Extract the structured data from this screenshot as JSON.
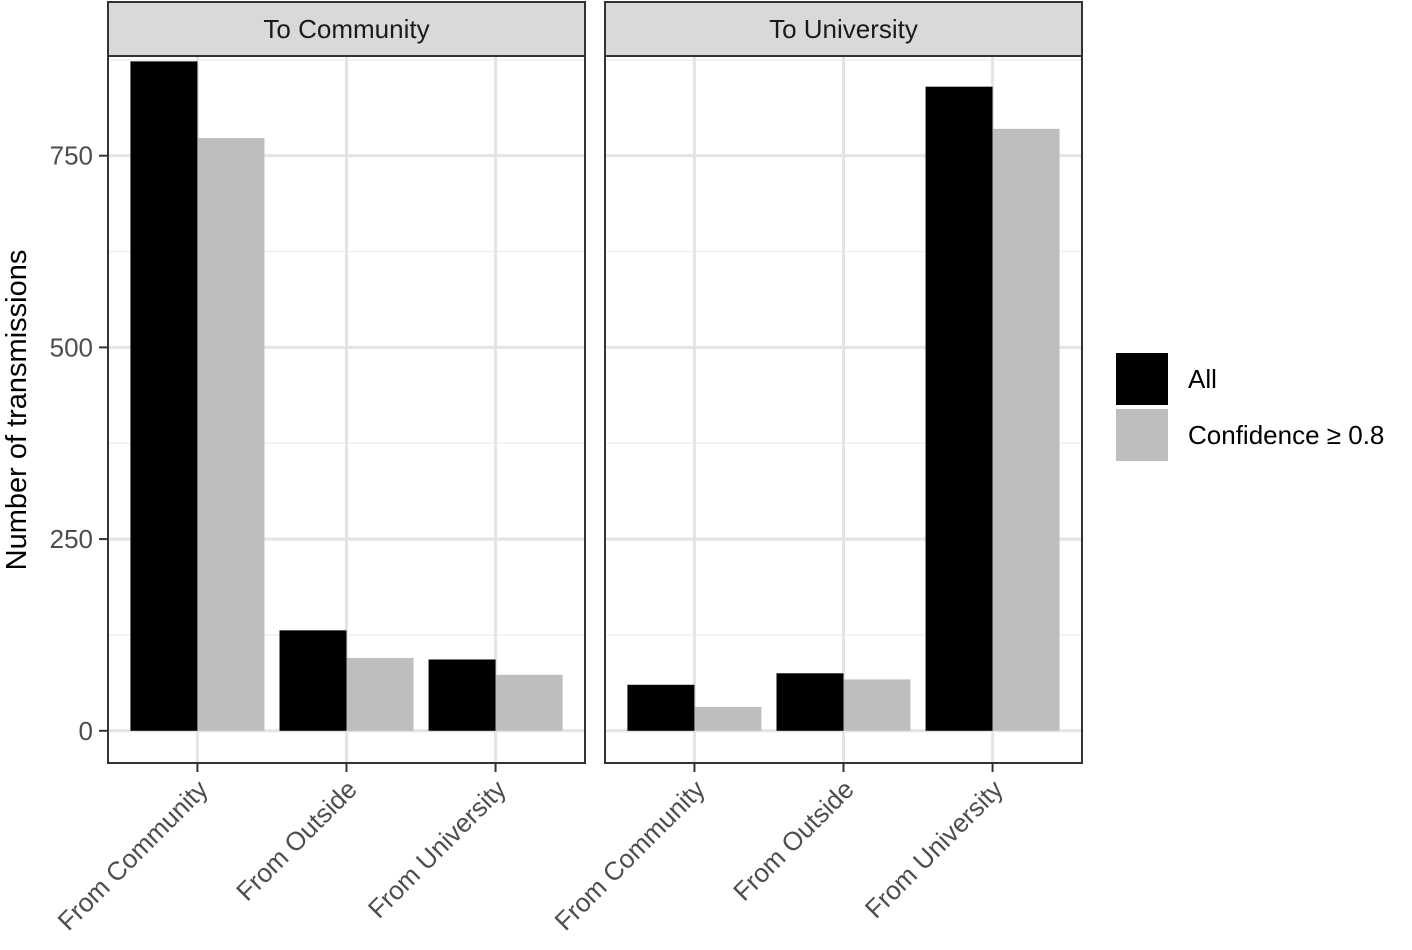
{
  "chart_data": {
    "type": "bar",
    "ylabel": "Number of transmissions",
    "ylim": [
      -42,
      880
    ],
    "yticks": [
      0,
      250,
      500,
      750
    ],
    "categories": [
      "From Community",
      "From Outside",
      "From University"
    ],
    "series_names": [
      "All",
      "Confidence ≥ 0.8"
    ],
    "series_colors": [
      "#000000",
      "#bebebe"
    ],
    "facets": [
      {
        "title": "To Community",
        "series": [
          {
            "name": "All",
            "values": [
              873,
              131,
              93
            ]
          },
          {
            "name": "Confidence ≥ 0.8",
            "values": [
              773,
              95,
              73
            ]
          }
        ]
      },
      {
        "title": "To University",
        "series": [
          {
            "name": "All",
            "values": [
              60,
              75,
              840
            ]
          },
          {
            "name": "Confidence ≥ 0.8",
            "values": [
              31,
              67,
              785
            ]
          }
        ]
      }
    ],
    "legend": {
      "position": "right",
      "items": [
        {
          "label": "All",
          "color": "#000000"
        },
        {
          "label": "Confidence ≥ 0.8",
          "color": "#bebebe"
        }
      ]
    }
  }
}
